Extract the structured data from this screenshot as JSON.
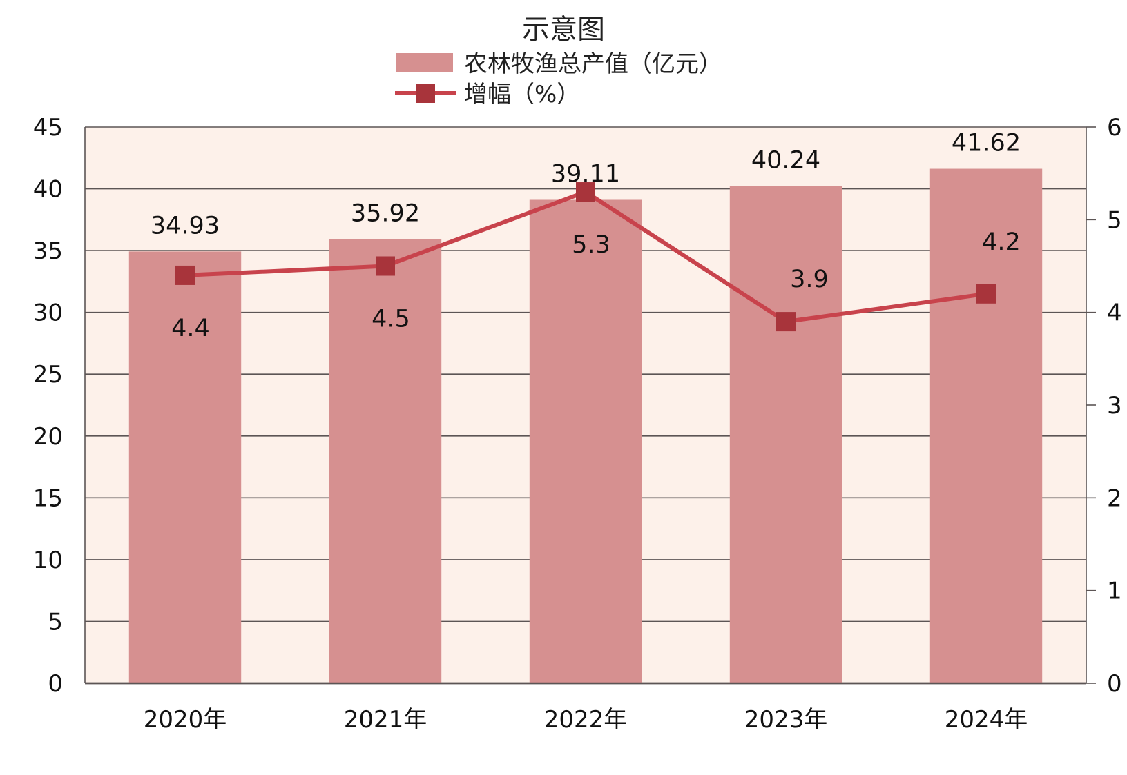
{
  "chart_data": {
    "type": "bar",
    "title": "示意图",
    "categories": [
      "2020年",
      "2021年",
      "2022年",
      "2023年",
      "2024年"
    ],
    "series": [
      {
        "name": "农林牧渔总产值（亿元）",
        "type": "bar",
        "axis": "left",
        "values": [
          34.93,
          35.92,
          39.11,
          40.24,
          41.62
        ]
      },
      {
        "name": "增幅（%）",
        "type": "line",
        "axis": "right",
        "values": [
          4.4,
          4.5,
          5.3,
          3.9,
          4.2
        ]
      }
    ],
    "ylim_left": [
      0,
      45
    ],
    "yticks_left": [
      "0",
      "5",
      "10",
      "15",
      "20",
      "25",
      "30",
      "35",
      "40",
      "45"
    ],
    "ylim_right": [
      0,
      6
    ],
    "yticks_right": [
      "0",
      "1",
      "2",
      "3",
      "4",
      "5",
      "6"
    ],
    "grid": true,
    "legend_position": "top-center",
    "colors": {
      "bar": "#D69090",
      "line": "#C8434C",
      "marker": "#A8343B",
      "plot_background": "#FDF1EA",
      "grid": "#5C5555"
    }
  }
}
